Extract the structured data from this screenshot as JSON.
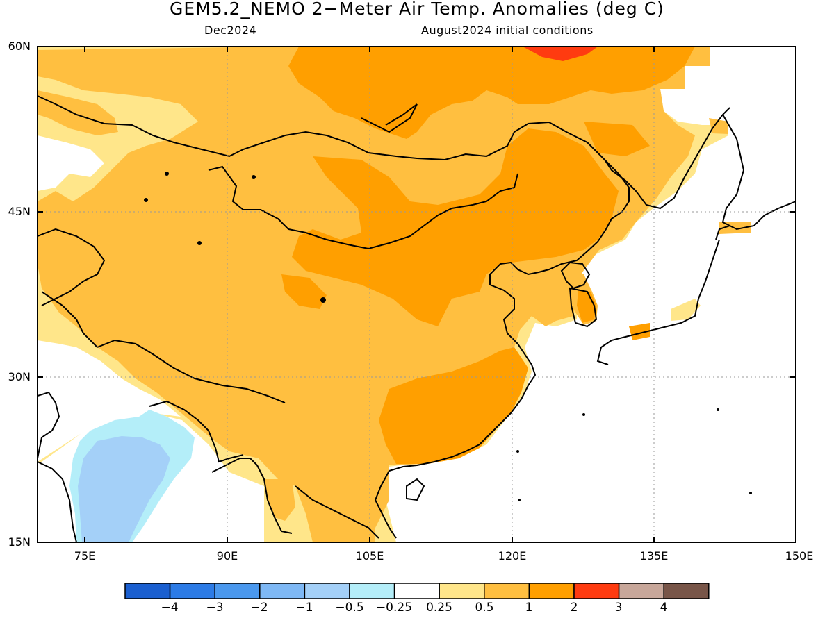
{
  "header": {
    "title": "GEM5.2_NEMO 2−Meter Air Temp. Anomalies (deg C)",
    "valid_month": "Dec2024",
    "init_conditions": "August2024 initial conditions"
  },
  "axes": {
    "lat_labels": [
      "60N",
      "45N",
      "30N",
      "15N"
    ],
    "lon_labels": [
      "75E",
      "90E",
      "105E",
      "120E",
      "135E",
      "150E"
    ],
    "lat_range": [
      15,
      60
    ],
    "lon_range": [
      70,
      150
    ]
  },
  "colorbar": {
    "labels": [
      "−4",
      "−3",
      "−2",
      "−1",
      "−0.5",
      "−0.25",
      "0.25",
      "0.5",
      "1",
      "2",
      "3",
      "4"
    ],
    "colors": [
      "#1a5fd0",
      "#2c7be6",
      "#4a98ee",
      "#7eb8f5",
      "#a4d0f8",
      "#b4eef9",
      "#ffffff",
      "#ffe68a",
      "#ffbf40",
      "#ff9f00",
      "#ff3b10",
      "#c8a79a",
      "#785548"
    ]
  },
  "map_colors": {
    "weak_warm": "#ffe68a",
    "warm": "#ffbf40",
    "strong_warm": "#ff9f00",
    "hot": "#ff3b10",
    "weak_cold": "#b4eef9",
    "cold": "#a4d0f8",
    "coast": "#000000"
  }
}
